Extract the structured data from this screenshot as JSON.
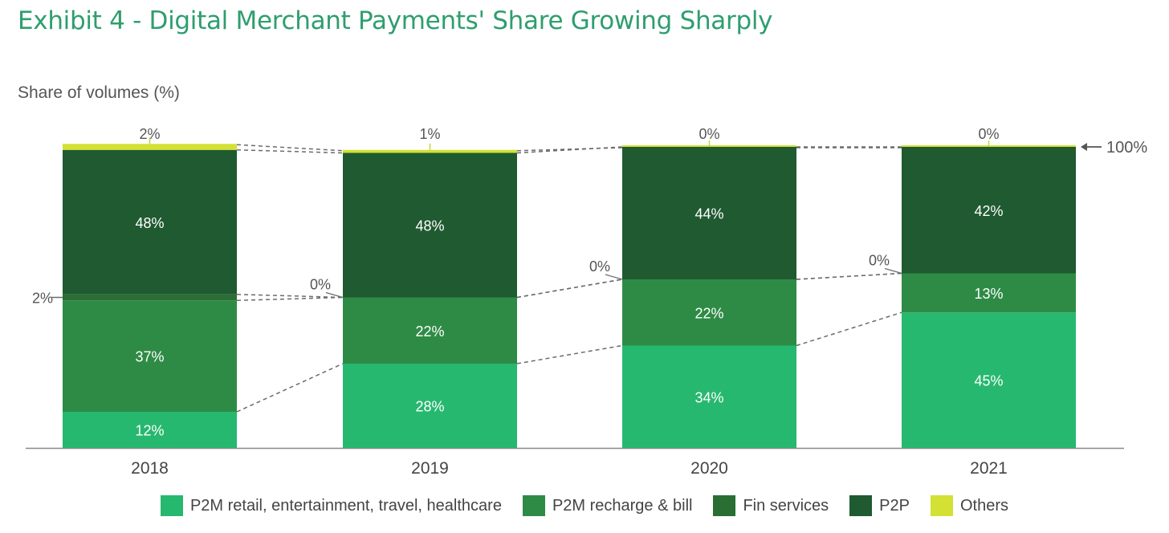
{
  "title": "Exhibit 4 - Digital Merchant Payments' Share Growing Sharply",
  "chart_data": {
    "type": "bar",
    "stacked": true,
    "ylabel": "Share of volumes (%)",
    "xlabel": "",
    "ylim": [
      0,
      100
    ],
    "categories": [
      "2018",
      "2019",
      "2020",
      "2021"
    ],
    "series": [
      {
        "name": "P2M retail, entertainment, travel, healthcare",
        "color": "#27b86f",
        "values": [
          12,
          28,
          34,
          45
        ],
        "labels": [
          "12%",
          "28%",
          "34%",
          "45%"
        ]
      },
      {
        "name": "P2M recharge & bill",
        "color": "#2e8b45",
        "values": [
          37,
          22,
          22,
          13
        ],
        "labels": [
          "37%",
          "22%",
          "22%",
          "13%"
        ]
      },
      {
        "name": "Fin services",
        "color": "#2a6e33",
        "values": [
          2,
          0,
          0,
          0
        ],
        "labels": [
          "2%",
          "0%",
          "0%",
          "0%"
        ]
      },
      {
        "name": "P2P",
        "color": "#1f5a31",
        "values": [
          48,
          48,
          44,
          42
        ],
        "labels": [
          "48%",
          "48%",
          "44%",
          "42%"
        ]
      },
      {
        "name": "Others",
        "color": "#d3e034",
        "values": [
          2,
          1,
          0,
          0
        ],
        "labels": [
          "2%",
          "1%",
          "0%",
          "0%"
        ]
      }
    ],
    "total_annotation": "100%",
    "legend_position": "bottom"
  }
}
